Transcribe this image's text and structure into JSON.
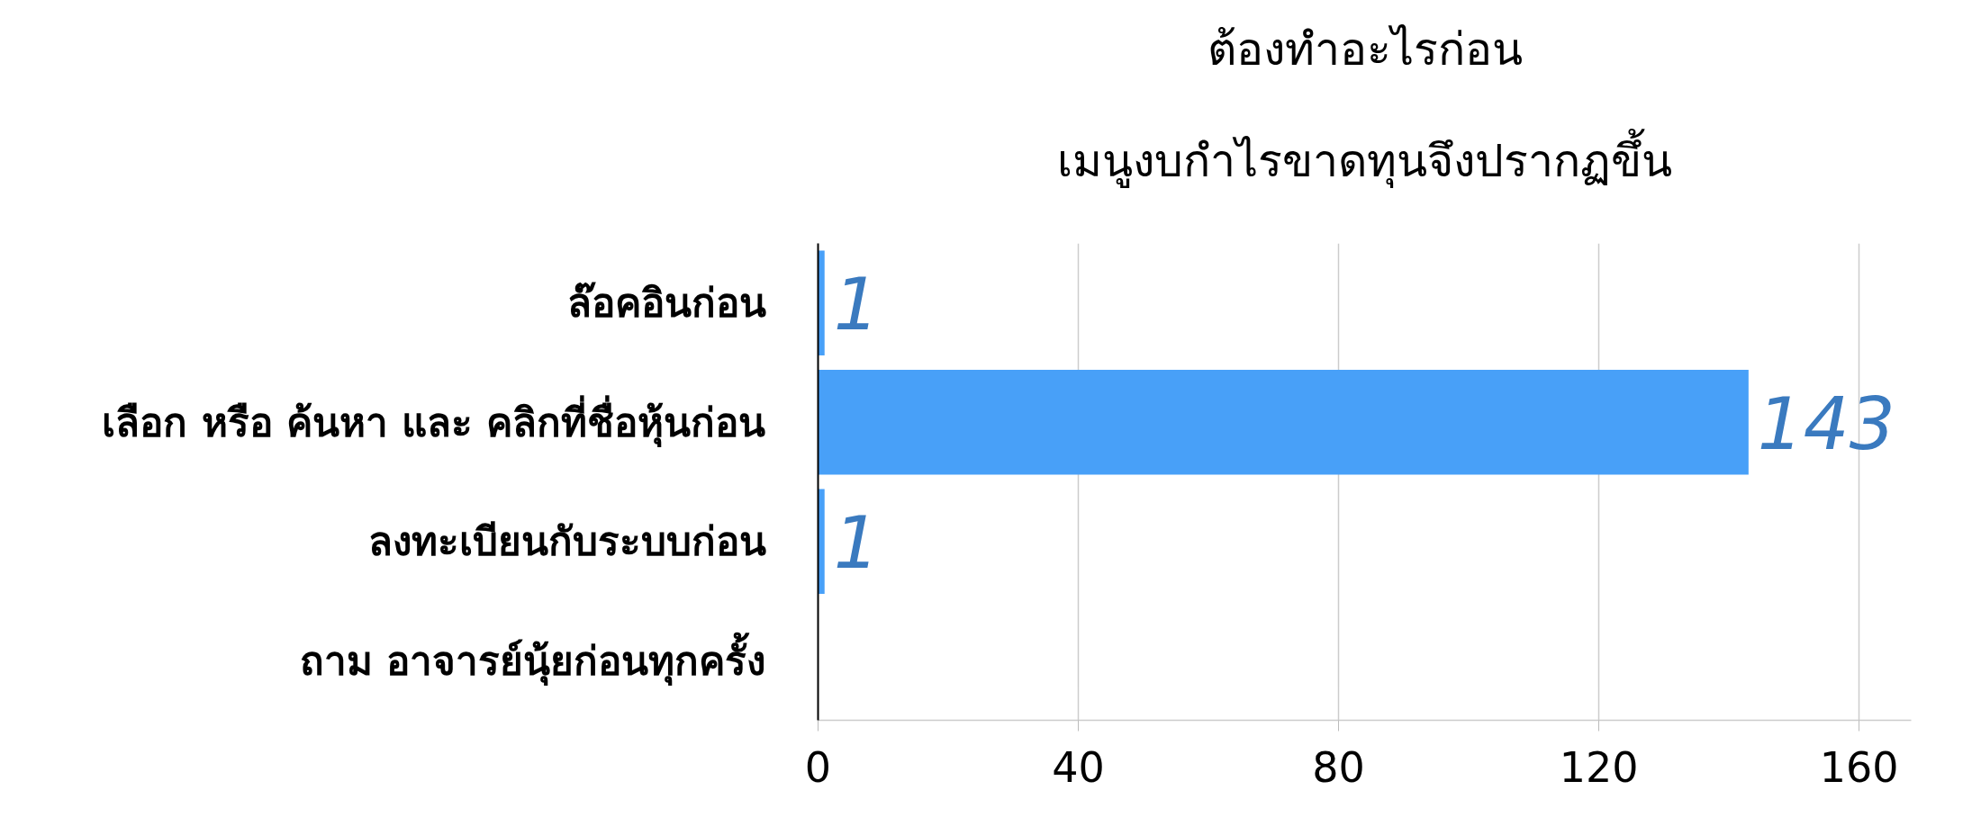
{
  "chart_data": {
    "type": "bar",
    "orientation": "horizontal",
    "title": "ต้องทำอะไรก่อน",
    "subtitle": "เมนูงบกำไรขาดทุนจึงปรากฏขึ้น",
    "categories": [
      "ล๊อคอินก่อน",
      "เลือก หรือ ค้นหา และ คลิกที่ชื่อหุ้นก่อน",
      "ลงทะเบียนกับระบบก่อน",
      "ถาม อาจารย์นุ้ยก่อนทุกครั้ง"
    ],
    "values": [
      1,
      143,
      1,
      0
    ],
    "value_labels": [
      "1",
      "143",
      "1",
      null
    ],
    "color": "#48a0f8",
    "xlim": [
      0,
      168
    ],
    "xticks": [
      0,
      40,
      80,
      120,
      160
    ],
    "grid": "x"
  }
}
